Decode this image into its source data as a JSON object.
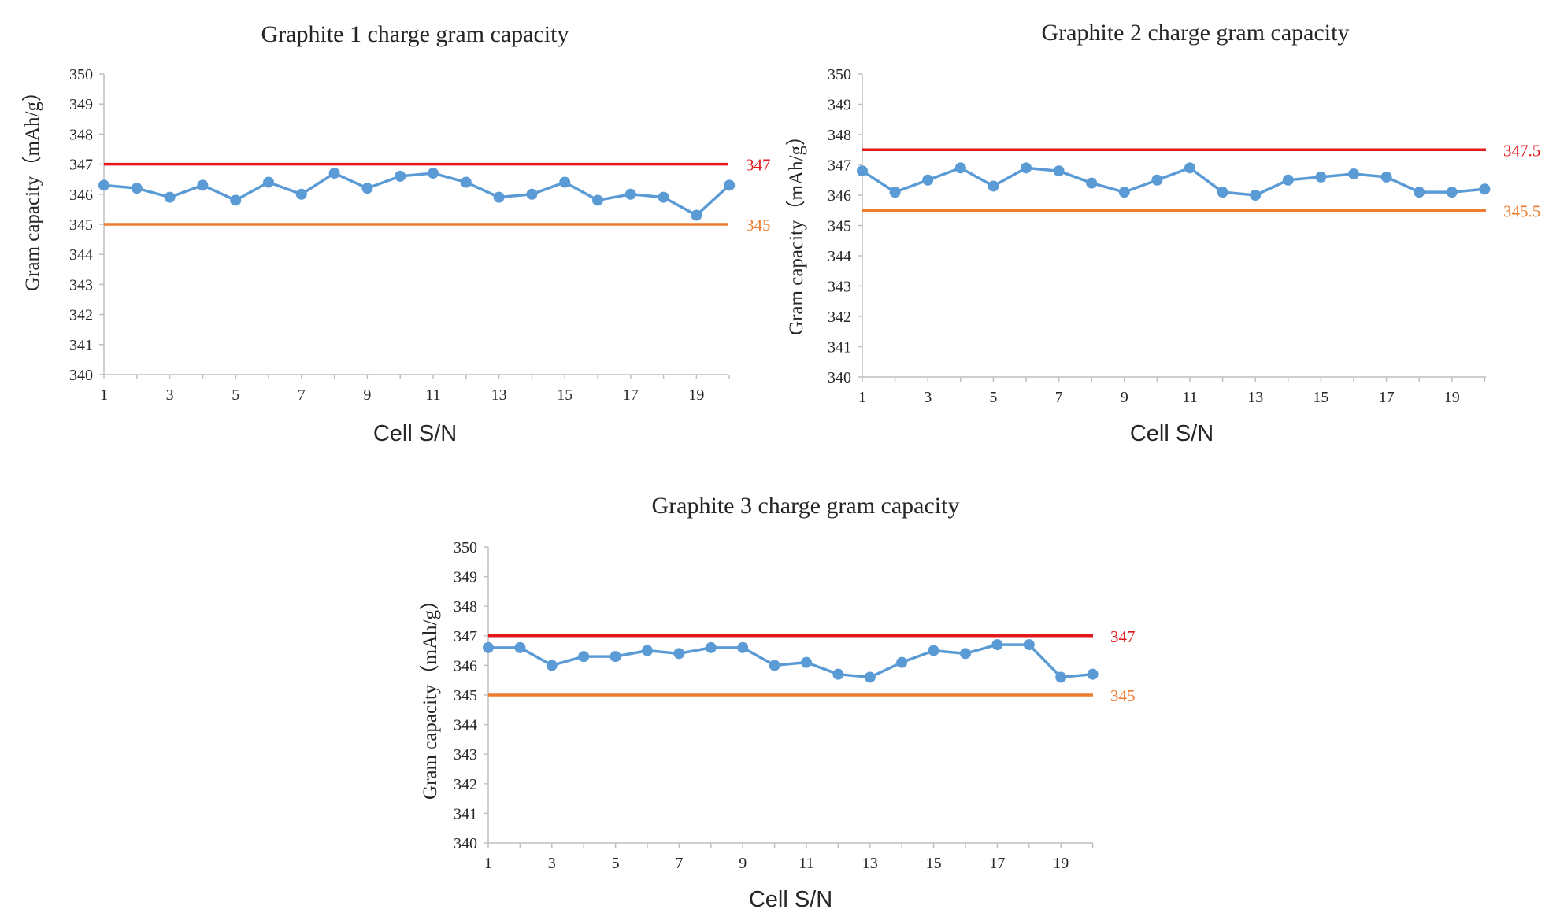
{
  "chart_data": [
    {
      "type": "line",
      "title": "Graphite 1 charge gram capacity",
      "xlabel": "Cell S/N",
      "ylabel": "Gram capacity（mAh/g）",
      "ylim": [
        340,
        350
      ],
      "yticks": [
        "340",
        "341",
        "342",
        "343",
        "344",
        "345",
        "346",
        "347",
        "348",
        "349",
        "350"
      ],
      "xticks": [
        "1",
        "3",
        "5",
        "7",
        "9",
        "11",
        "13",
        "15",
        "17",
        "19"
      ],
      "x": [
        1,
        2,
        3,
        4,
        5,
        6,
        7,
        8,
        9,
        10,
        11,
        12,
        13,
        14,
        15,
        16,
        17,
        18,
        19,
        20
      ],
      "series": [
        {
          "values": [
            346.3,
            346.2,
            345.9,
            346.3,
            345.8,
            346.4,
            346.0,
            346.7,
            346.2,
            346.6,
            346.7,
            346.4,
            345.9,
            346.0,
            346.4,
            345.8,
            346.0,
            345.9,
            345.3,
            346.3
          ]
        }
      ],
      "ref_lines": [
        {
          "value": 347,
          "label": "347",
          "color": "#e31a1c"
        },
        {
          "value": 345,
          "label": "345",
          "color": "#ed7d31"
        }
      ],
      "line_color": "#5b9bd5",
      "grid": false
    },
    {
      "type": "line",
      "title": "Graphite 2 charge gram capacity",
      "xlabel": "Cell S/N",
      "ylabel": "Gram capacity（mAh/g）",
      "ylim": [
        340,
        350
      ],
      "yticks": [
        "340",
        "341",
        "342",
        "343",
        "344",
        "345",
        "346",
        "347",
        "348",
        "349",
        "350"
      ],
      "xticks": [
        "1",
        "3",
        "5",
        "7",
        "9",
        "11",
        "13",
        "15",
        "17",
        "19"
      ],
      "x": [
        1,
        2,
        3,
        4,
        5,
        6,
        7,
        8,
        9,
        10,
        11,
        12,
        13,
        14,
        15,
        16,
        17,
        18,
        19,
        20
      ],
      "series": [
        {
          "values": [
            346.8,
            346.1,
            346.5,
            346.9,
            346.3,
            346.9,
            346.8,
            346.4,
            346.1,
            346.5,
            346.9,
            346.1,
            346.0,
            346.5,
            346.6,
            346.7,
            346.6,
            346.1,
            346.1,
            346.2
          ]
        }
      ],
      "ref_lines": [
        {
          "value": 347.5,
          "label": "347.5",
          "color": "#e31a1c"
        },
        {
          "value": 345.5,
          "label": "345.5",
          "color": "#ed7d31"
        }
      ],
      "line_color": "#5b9bd5",
      "grid": false
    },
    {
      "type": "line",
      "title": "Graphite 3 charge gram capacity",
      "xlabel": "Cell S/N",
      "ylabel": "Gram capacity（mAh/g）",
      "ylim": [
        340,
        350
      ],
      "yticks": [
        "340",
        "341",
        "342",
        "343",
        "344",
        "345",
        "346",
        "347",
        "348",
        "349",
        "350"
      ],
      "xticks": [
        "1",
        "3",
        "5",
        "7",
        "9",
        "11",
        "13",
        "15",
        "17",
        "19"
      ],
      "x": [
        1,
        2,
        3,
        4,
        5,
        6,
        7,
        8,
        9,
        10,
        11,
        12,
        13,
        14,
        15,
        16,
        17,
        18,
        19,
        20
      ],
      "series": [
        {
          "values": [
            346.6,
            346.6,
            346.0,
            346.3,
            346.3,
            346.5,
            346.4,
            346.6,
            346.6,
            346.0,
            346.1,
            345.7,
            345.6,
            346.1,
            346.5,
            346.4,
            346.7,
            346.7,
            345.6,
            345.7
          ]
        }
      ],
      "ref_lines": [
        {
          "value": 347,
          "label": "347",
          "color": "#e31a1c"
        },
        {
          "value": 345,
          "label": "345",
          "color": "#ed7d31"
        }
      ],
      "line_color": "#5b9bd5",
      "grid": false
    }
  ]
}
